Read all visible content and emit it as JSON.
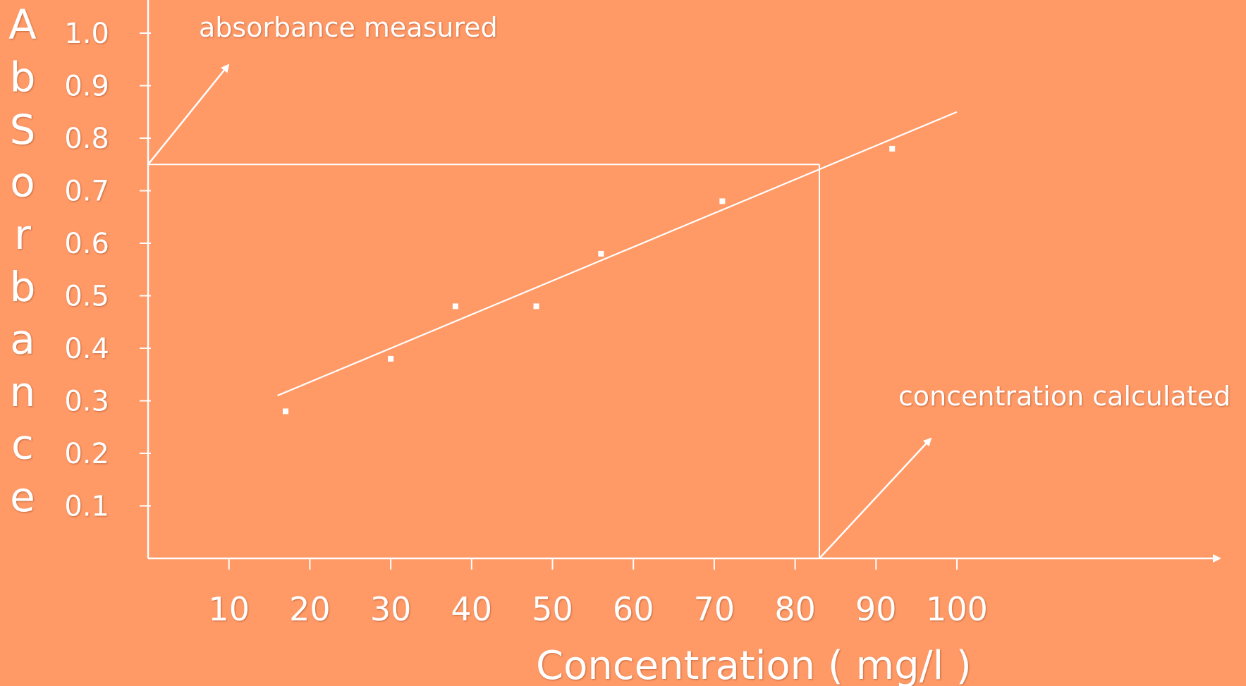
{
  "chart_data": {
    "type": "scatter",
    "title": "",
    "xlabel": "Concentration ( mg/l )",
    "ylabel_letters": [
      "A",
      "b",
      "S",
      "o",
      "r",
      "b",
      "a",
      "n",
      "c",
      "e"
    ],
    "xlim": [
      0,
      113
    ],
    "ylim": [
      0,
      1.1
    ],
    "x_ticks": [
      10,
      20,
      30,
      40,
      50,
      60,
      70,
      80,
      90,
      100
    ],
    "x_tick_labels": [
      "10",
      "20",
      "30",
      "40",
      "50",
      "60",
      "70",
      "80",
      "90",
      "100"
    ],
    "y_ticks": [
      0.1,
      0.2,
      0.3,
      0.4,
      0.5,
      0.6,
      0.7,
      0.8,
      0.9,
      1.0
    ],
    "y_tick_labels": [
      "0.1",
      "0.2",
      "0.3",
      "0.4",
      "0.5",
      "0.6",
      "0.7",
      "0.8",
      "0.9",
      "1.0"
    ],
    "points": [
      {
        "x": 17,
        "y": 0.28
      },
      {
        "x": 30,
        "y": 0.38
      },
      {
        "x": 38,
        "y": 0.48
      },
      {
        "x": 48,
        "y": 0.48
      },
      {
        "x": 56,
        "y": 0.58
      },
      {
        "x": 71,
        "y": 0.68
      },
      {
        "x": 92,
        "y": 0.78
      }
    ],
    "fit_line": {
      "from": {
        "x": 16,
        "y": 0.31
      },
      "to": {
        "x": 100,
        "y": 0.85
      }
    },
    "measurement": {
      "absorbance": 0.75,
      "concentration": 83
    },
    "annotations": {
      "absorbance": "absorbance measured",
      "concentration": "concentration calculated"
    },
    "grid": false,
    "legend": "none",
    "colors": {
      "background": "#FF9966",
      "ink": "#FFFFFF"
    }
  }
}
